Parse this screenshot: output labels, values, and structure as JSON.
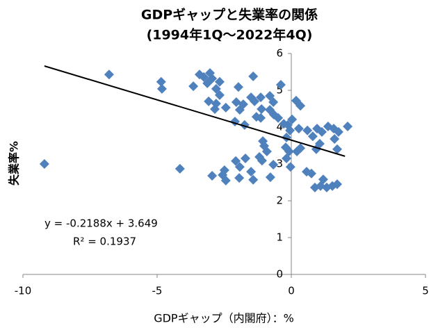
{
  "chart_data": {
    "type": "scatter",
    "title": "GDPギャップと失業率の関係",
    "subtitle": "(1994年1Q～2022年4Q)",
    "x_label": "GDPギャップ（内閣府）：%",
    "y_label": "失業率%",
    "annotations": [
      "y = -0.2188x + 3.649",
      "R² = 0.1937"
    ],
    "xlim": [
      -10,
      5
    ],
    "xticks": [
      -10,
      -5,
      0,
      5
    ],
    "ylim": [
      0,
      6
    ],
    "yticks": [
      0,
      1,
      2,
      3,
      4,
      5,
      6
    ],
    "grid": false,
    "color": "#4f81bd",
    "x": [
      -6.79,
      -9.2,
      -4.15,
      -4.85,
      -4.82,
      -3.65,
      -3.42,
      -3.26,
      -3.03,
      -2.95,
      -3.13,
      -2.8,
      -2.67,
      -3.08,
      -2.8,
      -2.85,
      -2.67,
      -1.97,
      -2.05,
      -1.79,
      -1.92,
      -1.74,
      -1.5,
      -1.37,
      -1.42,
      -1.3,
      -1.11,
      -1.14,
      -0.8,
      -0.8,
      -0.67,
      -0.65,
      -0.39,
      -0.28,
      -0.13,
      0.03,
      0.18,
      0.34,
      0.28,
      -0.05,
      -0.18,
      0.6,
      0.8,
      0.96,
      1.14,
      1.37,
      1.58,
      1.76,
      2.1,
      1.61,
      1.71,
      1.06,
      0.93,
      0.34,
      0.21,
      -0.08,
      -0.21,
      -0.18,
      -0.03,
      0.57,
      0.75,
      0.88,
      1.09,
      1.32,
      1.53,
      1.71,
      1.19,
      -0.78,
      -0.67,
      -1.09,
      -1.01,
      -0.91,
      -1.19,
      -1.71,
      -2.07,
      -1.92,
      -1.5,
      -1.42,
      -1.94,
      -2.49,
      -2.56,
      -2.95,
      -2.44,
      -1.06,
      -2.1,
      -2.44,
      -0.49,
      -1.14
    ],
    "values": [
      5.43,
      3.0,
      2.87,
      5.23,
      5.04,
      5.11,
      5.43,
      5.36,
      5.47,
      5.32,
      5.19,
      5.04,
      5.23,
      4.7,
      4.64,
      4.49,
      4.87,
      5.09,
      4.68,
      4.62,
      4.47,
      4.06,
      4.81,
      4.7,
      5.38,
      4.28,
      4.49,
      4.81,
      4.85,
      4.47,
      4.68,
      4.34,
      5.15,
      4.09,
      4.06,
      4.21,
      4.72,
      4.58,
      3.96,
      3.91,
      3.72,
      3.91,
      3.75,
      3.96,
      3.87,
      4.02,
      3.96,
      3.87,
      4.02,
      3.68,
      3.4,
      3.55,
      3.4,
      3.43,
      3.34,
      3.34,
      3.45,
      3.15,
      2.92,
      2.79,
      2.74,
      2.36,
      2.4,
      2.36,
      2.4,
      2.45,
      2.58,
      2.64,
      2.98,
      3.09,
      3.49,
      3.34,
      3.19,
      3.15,
      3.08,
      2.92,
      2.79,
      2.57,
      2.62,
      2.83,
      2.7,
      2.68,
      2.55,
      3.62,
      4.15,
      4.53,
      4.25,
      4.25
    ],
    "trendline": {
      "color": "#000000",
      "x": [
        -9.2,
        2.0
      ],
      "values": [
        5.66,
        3.21
      ]
    }
  }
}
